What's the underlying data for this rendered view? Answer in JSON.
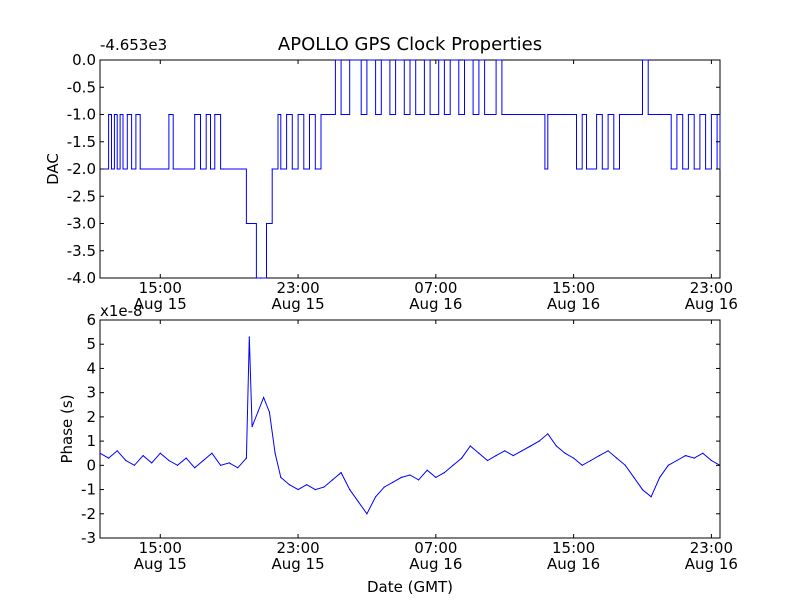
{
  "figure": {
    "title": "APOLLO GPS Clock Properties",
    "line_color": "#0000ff"
  },
  "chart_data": [
    {
      "type": "line",
      "ylabel": "DAC",
      "offset_text": "-4.653e3",
      "ylim": [
        -4.0,
        0.0
      ],
      "yticks": [
        0.0,
        -0.5,
        -1.0,
        -1.5,
        -2.0,
        -2.5,
        -3.0,
        -3.5,
        -4.0
      ],
      "ytick_labels": [
        "0.0",
        "-0.5",
        "-1.0",
        "-1.5",
        "-2.0",
        "-2.5",
        "-3.0",
        "-3.5",
        "-4.0"
      ],
      "xlim": [
        "2012-08-15 11:30",
        "2012-08-16 23:30"
      ],
      "xticks": [
        {
          "time": "2012-08-15 15:00",
          "line1": "15:00",
          "line2": "Aug 15"
        },
        {
          "time": "2012-08-15 23:00",
          "line1": "23:00",
          "line2": "Aug 15"
        },
        {
          "time": "2012-08-16 07:00",
          "line1": "07:00",
          "line2": "Aug 16"
        },
        {
          "time": "2012-08-16 15:00",
          "line1": "15:00",
          "line2": "Aug 16"
        },
        {
          "time": "2012-08-16 23:00",
          "line1": "23:00",
          "line2": "Aug 16"
        }
      ],
      "series": [
        {
          "x": [
            "2012-08-15 11:30",
            "2012-08-15 12:00",
            "2012-08-15 12:10",
            "2012-08-15 12:20",
            "2012-08-15 12:30",
            "2012-08-15 12:40",
            "2012-08-15 12:50",
            "2012-08-15 13:05",
            "2012-08-15 13:20",
            "2012-08-15 13:35",
            "2012-08-15 13:50",
            "2012-08-15 15:30",
            "2012-08-15 15:45",
            "2012-08-15 16:00",
            "2012-08-15 17:00",
            "2012-08-15 17:20",
            "2012-08-15 17:40",
            "2012-08-15 17:55",
            "2012-08-15 18:10",
            "2012-08-15 18:30",
            "2012-08-15 18:40",
            "2012-08-15 20:00",
            "2012-08-15 20:35",
            "2012-08-15 20:50",
            "2012-08-15 21:10",
            "2012-08-15 21:30",
            "2012-08-15 21:50",
            "2012-08-15 22:00",
            "2012-08-15 22:20",
            "2012-08-15 22:40",
            "2012-08-15 23:00",
            "2012-08-15 23:20",
            "2012-08-15 23:40",
            "2012-08-16 00:00",
            "2012-08-16 00:20",
            "2012-08-16 00:40",
            "2012-08-16 01:10",
            "2012-08-16 01:30",
            "2012-08-16 02:00",
            "2012-08-16 02:40",
            "2012-08-16 03:00",
            "2012-08-16 03:30",
            "2012-08-16 03:50",
            "2012-08-16 04:20",
            "2012-08-16 04:40",
            "2012-08-16 05:10",
            "2012-08-16 05:30",
            "2012-08-16 05:50",
            "2012-08-16 06:20",
            "2012-08-16 06:40",
            "2012-08-16 07:10",
            "2012-08-16 07:30",
            "2012-08-16 07:50",
            "2012-08-16 08:20",
            "2012-08-16 08:40",
            "2012-08-16 09:10",
            "2012-08-16 09:30",
            "2012-08-16 09:50",
            "2012-08-16 10:30",
            "2012-08-16 10:50",
            "2012-08-16 11:10",
            "2012-08-16 13:20",
            "2012-08-16 13:30",
            "2012-08-16 14:30",
            "2012-08-16 15:10",
            "2012-08-16 15:30",
            "2012-08-16 15:45",
            "2012-08-16 16:20",
            "2012-08-16 16:40",
            "2012-08-16 17:00",
            "2012-08-16 17:20",
            "2012-08-16 17:40",
            "2012-08-16 18:00",
            "2012-08-16 19:00",
            "2012-08-16 19:20",
            "2012-08-16 20:00",
            "2012-08-16 20:40",
            "2012-08-16 21:00",
            "2012-08-16 21:20",
            "2012-08-16 21:40",
            "2012-08-16 22:00",
            "2012-08-16 22:20",
            "2012-08-16 22:40",
            "2012-08-16 23:00",
            "2012-08-16 23:20",
            "2012-08-16 23:30"
          ],
          "y": [
            -2,
            -1,
            -2,
            -1,
            -2,
            -1,
            -2,
            -1,
            -2,
            -1,
            -2,
            -1,
            -2,
            -2,
            -1,
            -2,
            -1,
            -2,
            -1,
            -2,
            -2,
            -3,
            -4,
            -4,
            -3,
            -2,
            -1,
            -2,
            -1,
            -2,
            -1,
            -2,
            -1,
            -2,
            -1,
            -1,
            0,
            -1,
            0,
            -1,
            0,
            -1,
            0,
            -1,
            0,
            -1,
            0,
            -1,
            0,
            -1,
            0,
            -1,
            0,
            -1,
            0,
            -1,
            0,
            -1,
            0,
            -1,
            -1,
            -2,
            -1,
            -1,
            -2,
            -1,
            -2,
            -1,
            -2,
            -1,
            -2,
            -1,
            -1,
            0,
            -1,
            -1,
            -2,
            -1,
            -2,
            -1,
            -2,
            -1,
            -2,
            -1,
            -2,
            -1
          ]
        }
      ]
    },
    {
      "type": "line",
      "xlabel": "Date (GMT)",
      "ylabel": "Phase (s)",
      "offset_text": "x1e-8",
      "ylim": [
        -3,
        6
      ],
      "yticks": [
        6,
        5,
        4,
        3,
        2,
        1,
        0,
        -1,
        -2,
        -3
      ],
      "ytick_labels": [
        "6",
        "5",
        "4",
        "3",
        "2",
        "1",
        "0",
        "-1",
        "-2",
        "-3"
      ],
      "xlim": [
        "2012-08-15 11:30",
        "2012-08-16 23:30"
      ],
      "xticks": [
        {
          "time": "2012-08-15 15:00",
          "line1": "15:00",
          "line2": "Aug 15"
        },
        {
          "time": "2012-08-15 23:00",
          "line1": "23:00",
          "line2": "Aug 15"
        },
        {
          "time": "2012-08-16 07:00",
          "line1": "07:00",
          "line2": "Aug 16"
        },
        {
          "time": "2012-08-16 15:00",
          "line1": "15:00",
          "line2": "Aug 16"
        },
        {
          "time": "2012-08-16 23:00",
          "line1": "23:00",
          "line2": "Aug 16"
        }
      ],
      "series": [
        {
          "x": [
            "2012-08-15 11:30",
            "2012-08-15 12:00",
            "2012-08-15 12:30",
            "2012-08-15 13:00",
            "2012-08-15 13:30",
            "2012-08-15 14:00",
            "2012-08-15 14:30",
            "2012-08-15 15:00",
            "2012-08-15 15:30",
            "2012-08-15 16:00",
            "2012-08-15 16:30",
            "2012-08-15 17:00",
            "2012-08-15 17:30",
            "2012-08-15 18:00",
            "2012-08-15 18:30",
            "2012-08-15 19:00",
            "2012-08-15 19:30",
            "2012-08-15 20:00",
            "2012-08-15 20:10",
            "2012-08-15 20:20",
            "2012-08-15 20:40",
            "2012-08-15 21:00",
            "2012-08-15 21:20",
            "2012-08-15 21:40",
            "2012-08-15 22:00",
            "2012-08-15 22:30",
            "2012-08-15 23:00",
            "2012-08-15 23:30",
            "2012-08-16 00:00",
            "2012-08-16 00:30",
            "2012-08-16 01:00",
            "2012-08-16 01:30",
            "2012-08-16 02:00",
            "2012-08-16 02:30",
            "2012-08-16 03:00",
            "2012-08-16 03:30",
            "2012-08-16 04:00",
            "2012-08-16 04:30",
            "2012-08-16 05:00",
            "2012-08-16 05:30",
            "2012-08-16 06:00",
            "2012-08-16 06:30",
            "2012-08-16 07:00",
            "2012-08-16 07:30",
            "2012-08-16 08:00",
            "2012-08-16 08:30",
            "2012-08-16 09:00",
            "2012-08-16 09:30",
            "2012-08-16 10:00",
            "2012-08-16 10:30",
            "2012-08-16 11:00",
            "2012-08-16 11:30",
            "2012-08-16 12:00",
            "2012-08-16 12:30",
            "2012-08-16 13:00",
            "2012-08-16 13:30",
            "2012-08-16 14:00",
            "2012-08-16 14:30",
            "2012-08-16 15:00",
            "2012-08-16 15:30",
            "2012-08-16 16:00",
            "2012-08-16 16:30",
            "2012-08-16 17:00",
            "2012-08-16 17:30",
            "2012-08-16 18:00",
            "2012-08-16 18:30",
            "2012-08-16 19:00",
            "2012-08-16 19:30",
            "2012-08-16 20:00",
            "2012-08-16 20:30",
            "2012-08-16 21:00",
            "2012-08-16 21:30",
            "2012-08-16 22:00",
            "2012-08-16 22:30",
            "2012-08-16 23:00",
            "2012-08-16 23:30"
          ],
          "y": [
            0.5,
            0.3,
            0.6,
            0.2,
            0.0,
            0.4,
            0.1,
            0.5,
            0.2,
            0.0,
            0.3,
            -0.1,
            0.2,
            0.5,
            0.0,
            0.1,
            -0.1,
            0.3,
            5.3,
            1.6,
            2.2,
            2.8,
            2.2,
            0.5,
            -0.5,
            -0.8,
            -1.0,
            -0.8,
            -1.0,
            -0.9,
            -0.6,
            -0.3,
            -1.0,
            -1.5,
            -2.0,
            -1.3,
            -0.9,
            -0.7,
            -0.5,
            -0.4,
            -0.6,
            -0.2,
            -0.5,
            -0.3,
            0.0,
            0.3,
            0.8,
            0.5,
            0.2,
            0.4,
            0.6,
            0.4,
            0.6,
            0.8,
            1.0,
            1.3,
            0.8,
            0.5,
            0.3,
            0.0,
            0.2,
            0.4,
            0.6,
            0.3,
            0.0,
            -0.5,
            -1.0,
            -1.3,
            -0.5,
            0.0,
            0.2,
            0.4,
            0.3,
            0.5,
            0.2,
            0.0
          ]
        }
      ]
    }
  ]
}
